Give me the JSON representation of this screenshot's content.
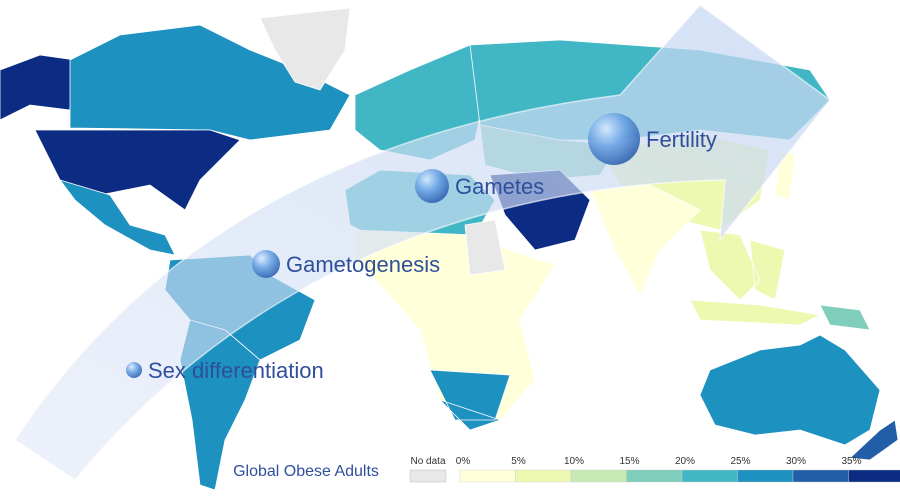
{
  "stages": [
    "Sex differentiation",
    "Gametogenesis",
    "Gametes",
    "Fertility"
  ],
  "legend": {
    "title": "Global Obese Adults",
    "no_data": "No data",
    "no_data_color": "#e8e8e8",
    "labels": [
      "0%",
      "5%",
      "10%",
      "15%",
      "20%",
      "25%",
      "30%",
      "35%"
    ],
    "colors": [
      "#ffffd9",
      "#edf8b1",
      "#c7e9b4",
      "#7fcdbb",
      "#41b6c4",
      "#1d91c0",
      "#225ea8",
      "#0c2c84"
    ]
  }
}
